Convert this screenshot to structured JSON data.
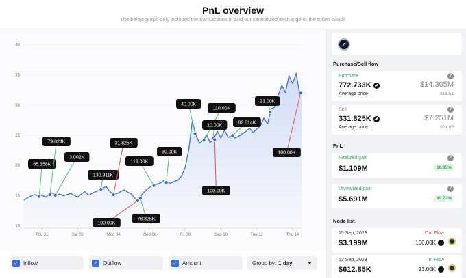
{
  "header": {
    "title": "PnL overview",
    "subtitle": "The below graph only includes the transactions in and out centralized exchange or the token swaps"
  },
  "colors": {
    "price_line": "#3b6fe0",
    "inflow": "#4cc46f",
    "outflow": "#e05252",
    "tag_bg": "#111111"
  },
  "chart_data": {
    "type": "line",
    "x_tick_labels": [
      "Thu 31",
      "Sat 02",
      "Mon 04",
      "Wed 06",
      "Fri 08",
      "Sep 10",
      "Tue 12",
      "Thu 14"
    ],
    "y_tick_labels": [
      "10",
      "15",
      "20",
      "25",
      "30",
      "35",
      "40"
    ],
    "ylim": [
      10,
      40
    ],
    "xlim": [
      0,
      15.5
    ],
    "grid": "horizontal dashed",
    "series": [
      {
        "values": [
          [
            0,
            14.2
          ],
          [
            0.2,
            14.6
          ],
          [
            0.4,
            14.9
          ],
          [
            0.6,
            15.1
          ],
          [
            0.8,
            14.8
          ],
          [
            1.0,
            15.0
          ],
          [
            1.2,
            14.7
          ],
          [
            1.4,
            15.1
          ],
          [
            1.6,
            15.4
          ],
          [
            1.8,
            15.0
          ],
          [
            2.0,
            15.2
          ],
          [
            2.2,
            14.9
          ],
          [
            2.4,
            15.1
          ],
          [
            2.6,
            15.3
          ],
          [
            2.8,
            15.0
          ],
          [
            3.0,
            14.7
          ],
          [
            3.2,
            15.2
          ],
          [
            3.4,
            15.6
          ],
          [
            3.6,
            15.0
          ],
          [
            3.8,
            15.3
          ],
          [
            4.0,
            15.6
          ],
          [
            4.2,
            15.8
          ],
          [
            4.4,
            16.2
          ],
          [
            4.6,
            16.4
          ],
          [
            4.8,
            15.6
          ],
          [
            5.0,
            15.1
          ],
          [
            5.2,
            15.3
          ],
          [
            5.4,
            15.6
          ],
          [
            5.6,
            15.9
          ],
          [
            5.8,
            15.5
          ],
          [
            6.0,
            15.2
          ],
          [
            6.2,
            14.5
          ],
          [
            6.4,
            14.1
          ],
          [
            6.6,
            15.2
          ],
          [
            6.8,
            15.8
          ],
          [
            7.0,
            16.3
          ],
          [
            7.2,
            16.6
          ],
          [
            7.4,
            16.8
          ],
          [
            7.6,
            17.0
          ],
          [
            7.8,
            17.4
          ],
          [
            8.0,
            17.1
          ],
          [
            8.2,
            17.0
          ],
          [
            8.4,
            17.3
          ],
          [
            8.6,
            17.5
          ],
          [
            8.8,
            18.2
          ],
          [
            9.0,
            19.6
          ],
          [
            9.2,
            22.5
          ],
          [
            9.4,
            27.3
          ],
          [
            9.6,
            25.0
          ],
          [
            9.8,
            23.6
          ],
          [
            10.0,
            24.1
          ],
          [
            10.2,
            25.0
          ],
          [
            10.4,
            23.7
          ],
          [
            10.6,
            24.4
          ],
          [
            10.8,
            25.6
          ],
          [
            11.0,
            24.5
          ],
          [
            11.2,
            25.8
          ],
          [
            11.4,
            24.6
          ],
          [
            11.6,
            24.9
          ],
          [
            11.8,
            24.5
          ],
          [
            12.0,
            24.8
          ],
          [
            12.2,
            25.2
          ],
          [
            12.4,
            25.6
          ],
          [
            12.6,
            26.1
          ],
          [
            12.8,
            25.4
          ],
          [
            13.0,
            26.0
          ],
          [
            13.2,
            26.5
          ],
          [
            13.4,
            27.8
          ],
          [
            13.6,
            26.8
          ],
          [
            13.8,
            29.3
          ],
          [
            14.0,
            29.6
          ],
          [
            14.2,
            31.6
          ],
          [
            14.4,
            33.2
          ],
          [
            14.6,
            32.0
          ],
          [
            14.8,
            34.8
          ],
          [
            15.0,
            33.5
          ],
          [
            15.2,
            35.2
          ],
          [
            15.4,
            31.7
          ],
          [
            15.5,
            32.2
          ]
        ]
      }
    ],
    "annotations": [
      {
        "label": "65.358K",
        "type": "inflow",
        "x": 0.85,
        "y": 14.8
      },
      {
        "label": "79.824K",
        "type": "inflow",
        "x": 1.45,
        "y": 15.1
      },
      {
        "label": "3.002K",
        "type": "inflow",
        "x": 1.75,
        "y": 15.0
      },
      {
        "label": "130.911K",
        "type": "inflow",
        "x": 4.3,
        "y": 16.0
      },
      {
        "label": "31.825K",
        "type": "outflow",
        "x": 5.0,
        "y": 15.1
      },
      {
        "label": "100.00K",
        "type": "outflow",
        "x": 6.35,
        "y": 14.1
      },
      {
        "label": "78.825K",
        "type": "inflow",
        "x": 6.5,
        "y": 14.5
      },
      {
        "label": "119.00K",
        "type": "inflow",
        "x": 7.25,
        "y": 16.6
      },
      {
        "label": "30.00K",
        "type": "inflow",
        "x": 7.95,
        "y": 17.1
      },
      {
        "label": "40.00K",
        "type": "inflow",
        "x": 9.55,
        "y": 25.2
      },
      {
        "label": "110.00K",
        "type": "inflow",
        "x": 10.05,
        "y": 24.1
      },
      {
        "label": "10.00K",
        "type": "inflow",
        "x": 10.55,
        "y": 24.4
      },
      {
        "label": "100.00K",
        "type": "outflow",
        "x": 10.65,
        "y": 24.2
      },
      {
        "label": "82.814K",
        "type": "inflow",
        "x": 11.65,
        "y": 24.9
      },
      {
        "label": "23.00K",
        "type": "inflow",
        "x": 13.75,
        "y": 28.8
      },
      {
        "label": "100.00K",
        "type": "outflow",
        "x": 15.45,
        "y": 32.0
      }
    ]
  },
  "controls": {
    "inflow_label": "Inflow",
    "outflow_label": "Outflow",
    "amount_label": "Amount",
    "groupby_prefix": "Group by:",
    "groupby_value": "1 day"
  },
  "sidebar": {
    "flow_title": "Purchase/Sell flow",
    "purchase": {
      "label": "Purchase",
      "amount": "772.733K",
      "usd": "$14.305M",
      "avg_label": "Average price",
      "avg_value": "$18.51"
    },
    "sell": {
      "label": "Sell",
      "amount": "331.825K",
      "usd": "$7.251M",
      "avg_label": "Average price",
      "avg_value": "$21.85"
    },
    "pnl_title": "PnL",
    "realized": {
      "label": "Realized gain",
      "value": "$1.109M",
      "pct": "18.05%"
    },
    "unrealized": {
      "label": "Unrealized gain",
      "value": "$5.691M",
      "pct": "69.73%"
    },
    "node_title": "Node list",
    "nodes": [
      {
        "date": "15 Sep, 2023",
        "direction": "Out Flow",
        "usd": "$3.199M",
        "amount": "100.00K"
      },
      {
        "date": "13 Sep, 2023",
        "direction": "In Flow",
        "usd": "$612.85K",
        "amount": "23.00K"
      }
    ]
  }
}
